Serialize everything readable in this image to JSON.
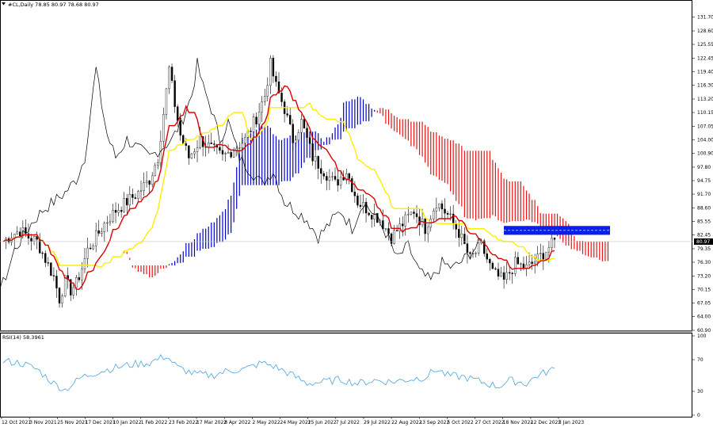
{
  "header": {
    "symbol_label": "#CL,Daily  78.85 80.97 78.68 80.97",
    "rsi_label": "RSI(14) 58.3961"
  },
  "price_badge": "80.97",
  "chart_data": {
    "type": "candlestick",
    "title": "#CL,Daily",
    "ohlc_last": {
      "open": 78.85,
      "high": 80.97,
      "low": 78.68,
      "close": 80.97
    },
    "ylim": [
      60.9,
      132.9
    ],
    "y_ticks": [
      131.7,
      128.6,
      125.55,
      122.45,
      119.4,
      116.3,
      113.2,
      110.15,
      107.05,
      104.0,
      100.9,
      97.8,
      94.75,
      91.7,
      88.6,
      85.55,
      82.45,
      79.35,
      76.3,
      73.2,
      70.15,
      67.05,
      64.0,
      60.9
    ],
    "x_ticks": [
      "12 Oct 2021",
      "3 Nov 2021",
      "25 Nov 2021",
      "17 Dec 2021",
      "10 Jan 2022",
      "1 Feb 2022",
      "23 Feb 2022",
      "17 Mar 2022",
      "8 Apr 2022",
      "2 May 2022",
      "24 May 2022",
      "15 Jun 2022",
      "7 Jul 2022",
      "29 Jul 2022",
      "22 Aug 2022",
      "13 Sep 2022",
      "5 Oct 2022",
      "27 Oct 2022",
      "18 Nov 2022",
      "12 Dec 2022",
      "5 Jan 2023"
    ],
    "close_series": [
      {
        "x": 0,
        "y": 81
      },
      {
        "x": 3,
        "y": 82.5
      },
      {
        "x": 6,
        "y": 83.5
      },
      {
        "x": 9,
        "y": 82
      },
      {
        "x": 12,
        "y": 81
      },
      {
        "x": 15,
        "y": 77
      },
      {
        "x": 18,
        "y": 73
      },
      {
        "x": 20,
        "y": 68
      },
      {
        "x": 22,
        "y": 72
      },
      {
        "x": 24,
        "y": 70
      },
      {
        "x": 26,
        "y": 71.5
      },
      {
        "x": 28,
        "y": 75
      },
      {
        "x": 30,
        "y": 79
      },
      {
        "x": 33,
        "y": 82
      },
      {
        "x": 36,
        "y": 85
      },
      {
        "x": 40,
        "y": 88
      },
      {
        "x": 44,
        "y": 90
      },
      {
        "x": 48,
        "y": 92
      },
      {
        "x": 52,
        "y": 95
      },
      {
        "x": 55,
        "y": 100
      },
      {
        "x": 57,
        "y": 110
      },
      {
        "x": 59,
        "y": 120
      },
      {
        "x": 61,
        "y": 112
      },
      {
        "x": 63,
        "y": 105
      },
      {
        "x": 66,
        "y": 100
      },
      {
        "x": 70,
        "y": 104
      },
      {
        "x": 74,
        "y": 102
      },
      {
        "x": 78,
        "y": 100
      },
      {
        "x": 82,
        "y": 102
      },
      {
        "x": 86,
        "y": 104
      },
      {
        "x": 90,
        "y": 109
      },
      {
        "x": 93,
        "y": 114
      },
      {
        "x": 95,
        "y": 121
      },
      {
        "x": 97,
        "y": 116
      },
      {
        "x": 100,
        "y": 111
      },
      {
        "x": 103,
        "y": 104
      },
      {
        "x": 106,
        "y": 108
      },
      {
        "x": 110,
        "y": 100
      },
      {
        "x": 114,
        "y": 97
      },
      {
        "x": 118,
        "y": 94
      },
      {
        "x": 122,
        "y": 97
      },
      {
        "x": 126,
        "y": 90
      },
      {
        "x": 130,
        "y": 88
      },
      {
        "x": 134,
        "y": 86
      },
      {
        "x": 138,
        "y": 82
      },
      {
        "x": 142,
        "y": 85
      },
      {
        "x": 146,
        "y": 88
      },
      {
        "x": 150,
        "y": 84
      },
      {
        "x": 154,
        "y": 90
      },
      {
        "x": 158,
        "y": 87
      },
      {
        "x": 162,
        "y": 83
      },
      {
        "x": 166,
        "y": 77
      },
      {
        "x": 170,
        "y": 80
      },
      {
        "x": 174,
        "y": 74
      },
      {
        "x": 178,
        "y": 72
      },
      {
        "x": 182,
        "y": 76
      },
      {
        "x": 186,
        "y": 75
      },
      {
        "x": 190,
        "y": 77
      },
      {
        "x": 193,
        "y": 79
      },
      {
        "x": 196,
        "y": 80.97
      }
    ],
    "rsi": {
      "ylim": [
        0,
        100
      ],
      "y_ticks": [
        100,
        70,
        30,
        0
      ],
      "values": [
        {
          "x": 0,
          "y": 68
        },
        {
          "x": 6,
          "y": 66
        },
        {
          "x": 12,
          "y": 58
        },
        {
          "x": 18,
          "y": 40
        },
        {
          "x": 22,
          "y": 32
        },
        {
          "x": 28,
          "y": 48
        },
        {
          "x": 34,
          "y": 55
        },
        {
          "x": 40,
          "y": 60
        },
        {
          "x": 46,
          "y": 64
        },
        {
          "x": 52,
          "y": 66
        },
        {
          "x": 58,
          "y": 75
        },
        {
          "x": 62,
          "y": 60
        },
        {
          "x": 68,
          "y": 52
        },
        {
          "x": 74,
          "y": 50
        },
        {
          "x": 80,
          "y": 56
        },
        {
          "x": 86,
          "y": 58
        },
        {
          "x": 92,
          "y": 66
        },
        {
          "x": 96,
          "y": 62
        },
        {
          "x": 102,
          "y": 52
        },
        {
          "x": 108,
          "y": 40
        },
        {
          "x": 114,
          "y": 42
        },
        {
          "x": 120,
          "y": 45
        },
        {
          "x": 126,
          "y": 40
        },
        {
          "x": 132,
          "y": 44
        },
        {
          "x": 138,
          "y": 42
        },
        {
          "x": 144,
          "y": 45
        },
        {
          "x": 150,
          "y": 48
        },
        {
          "x": 154,
          "y": 58
        },
        {
          "x": 158,
          "y": 50
        },
        {
          "x": 164,
          "y": 48
        },
        {
          "x": 170,
          "y": 42
        },
        {
          "x": 176,
          "y": 36
        },
        {
          "x": 180,
          "y": 44
        },
        {
          "x": 186,
          "y": 40
        },
        {
          "x": 190,
          "y": 50
        },
        {
          "x": 196,
          "y": 58.4
        }
      ]
    },
    "colors": {
      "candle": "#000000",
      "tenkan": "#dd0000",
      "kijun": "#ffee00",
      "chikou": "#000000",
      "cloud_bull": "#0000cc",
      "cloud_bear": "#ee1111",
      "rsi_line": "#4aa3df",
      "highlight_zone": "#0a1ef0"
    },
    "highlight_zone": {
      "y_low": 82.5,
      "y_high": 84.5
    }
  }
}
